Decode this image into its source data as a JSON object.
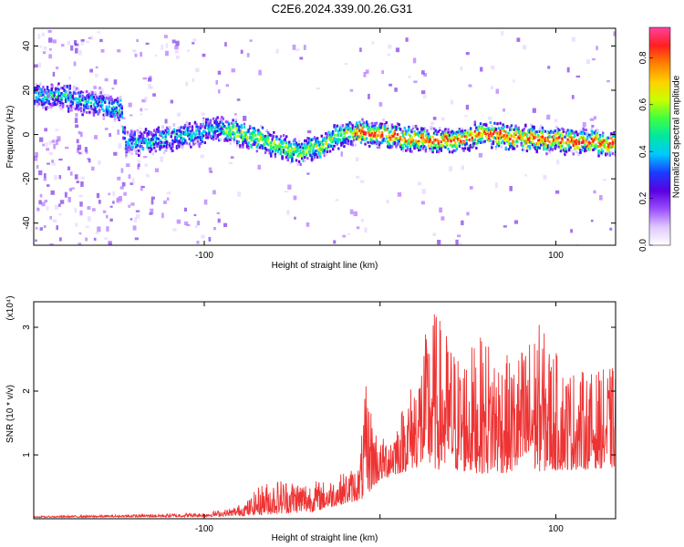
{
  "title": "C2E6.2024.339.00.26.G31",
  "chart_data": [
    {
      "type": "heatmap",
      "xlabel": "Height of straight line (km)",
      "ylabel": "Frequency (Hz)",
      "xlim": [
        -197,
        134
      ],
      "ylim": [
        -50,
        48
      ],
      "xticks": [
        -100,
        0,
        100
      ],
      "xtick_labels": [
        "-100",
        "",
        "100"
      ],
      "yticks": [
        -40,
        -20,
        0,
        20,
        40
      ],
      "ytick_labels": [
        "-40",
        "-20",
        "0",
        "20",
        "40"
      ],
      "grid": false,
      "ridge_center_hz": [
        {
          "x": -197,
          "y": 18
        },
        {
          "x": -175,
          "y": 17
        },
        {
          "x": -160,
          "y": 14
        },
        {
          "x": -148,
          "y": 12
        },
        {
          "x": -145,
          "y": -4
        },
        {
          "x": -130,
          "y": -2
        },
        {
          "x": -110,
          "y": 0
        },
        {
          "x": -90,
          "y": 4
        },
        {
          "x": -80,
          "y": 1
        },
        {
          "x": -60,
          "y": -4
        },
        {
          "x": -45,
          "y": -8
        },
        {
          "x": -35,
          "y": -5
        },
        {
          "x": -20,
          "y": 2
        },
        {
          "x": 0,
          "y": 1
        },
        {
          "x": 20,
          "y": -2
        },
        {
          "x": 40,
          "y": -2
        },
        {
          "x": 60,
          "y": 1
        },
        {
          "x": 80,
          "y": -1
        },
        {
          "x": 100,
          "y": -2
        },
        {
          "x": 120,
          "y": -3
        },
        {
          "x": 134,
          "y": -4
        }
      ],
      "colorbar": {
        "label": "Normalized spectral amplitude",
        "range": [
          0.0,
          0.93
        ],
        "ticks": [
          0.0,
          0.2,
          0.4,
          0.6,
          0.8
        ],
        "tick_labels": [
          "0.0",
          "0.2",
          "0.4",
          "0.6",
          "0.8"
        ],
        "colors": [
          "#ffffff",
          "#e0c8ff",
          "#9a4dff",
          "#5a00e0",
          "#1a3cff",
          "#00c8ff",
          "#00e8a0",
          "#40ff40",
          "#c8ff00",
          "#ffd000",
          "#ff8000",
          "#ff2020",
          "#ff40a0"
        ]
      }
    },
    {
      "type": "line",
      "xlabel": "Height of straight line (km)",
      "ylabel": "SNR (10 * v/v)",
      "multiplier": "(x10⁴)",
      "xlim": [
        -197,
        134
      ],
      "ylim": [
        0,
        3.4
      ],
      "xticks": [
        -100,
        0,
        100
      ],
      "xtick_labels": [
        "-100",
        "",
        "100"
      ],
      "yticks": [
        1,
        2,
        3
      ],
      "ytick_labels": [
        "1",
        "2",
        "3"
      ],
      "grid": false,
      "series": [
        {
          "color": "#ee3333",
          "envelope": [
            {
              "x": -197,
              "y": 0.04
            },
            {
              "x": -150,
              "y": 0.06
            },
            {
              "x": -120,
              "y": 0.08
            },
            {
              "x": -100,
              "y": 0.1
            },
            {
              "x": -85,
              "y": 0.16
            },
            {
              "x": -75,
              "y": 0.3
            },
            {
              "x": -68,
              "y": 0.55
            },
            {
              "x": -55,
              "y": 0.65
            },
            {
              "x": -40,
              "y": 0.6
            },
            {
              "x": -30,
              "y": 0.6
            },
            {
              "x": -12,
              "y": 0.85
            },
            {
              "x": -8,
              "y": 2.1
            },
            {
              "x": 0,
              "y": 1.2
            },
            {
              "x": 10,
              "y": 1.6
            },
            {
              "x": 20,
              "y": 2.3
            },
            {
              "x": 30,
              "y": 3.35
            },
            {
              "x": 45,
              "y": 2.6
            },
            {
              "x": 60,
              "y": 2.9
            },
            {
              "x": 75,
              "y": 2.5
            },
            {
              "x": 90,
              "y": 3.1
            },
            {
              "x": 105,
              "y": 2.4
            },
            {
              "x": 120,
              "y": 2.3
            },
            {
              "x": 134,
              "y": 2.4
            }
          ],
          "baseline": [
            {
              "x": -197,
              "y": 0.02
            },
            {
              "x": -100,
              "y": 0.03
            },
            {
              "x": -75,
              "y": 0.05
            },
            {
              "x": -40,
              "y": 0.1
            },
            {
              "x": -10,
              "y": 0.3
            },
            {
              "x": 0,
              "y": 0.6
            },
            {
              "x": 20,
              "y": 0.8
            },
            {
              "x": 60,
              "y": 0.7
            },
            {
              "x": 134,
              "y": 0.8
            }
          ]
        }
      ]
    }
  ]
}
